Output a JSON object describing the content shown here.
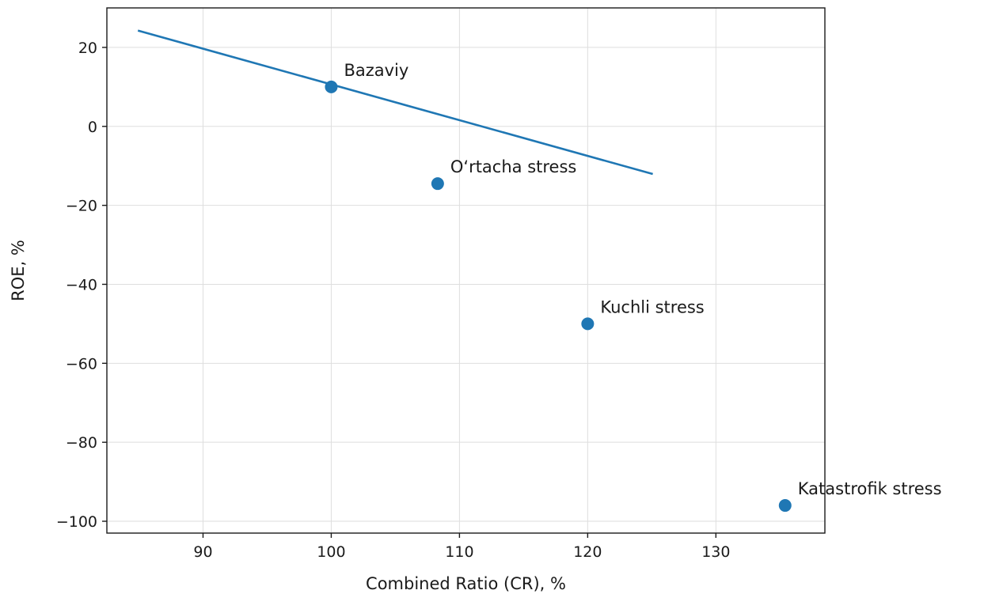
{
  "chart_data": {
    "type": "scatter",
    "xlabel": "Combined Ratio (CR), %",
    "ylabel": "ROE, %",
    "xlim": [
      82.5,
      138.5
    ],
    "ylim": [
      -103,
      30
    ],
    "x_ticks": [
      90,
      100,
      110,
      120,
      130
    ],
    "y_ticks": [
      20,
      0,
      -20,
      -40,
      -60,
      -80,
      -100
    ],
    "grid": true,
    "color": "#1f77b4",
    "points": [
      {
        "label": "Bazaviy",
        "x": 100.0,
        "y": 10.0
      },
      {
        "label": "O‘rtacha stress",
        "x": 108.3,
        "y": -14.5
      },
      {
        "label": "Kuchli stress",
        "x": 120.0,
        "y": -50.0
      },
      {
        "label": "Katastrofik stress",
        "x": 135.4,
        "y": -96.0
      }
    ],
    "trend_line": {
      "x": [
        85,
        125
      ],
      "y": [
        24.2,
        -12.0
      ]
    }
  }
}
